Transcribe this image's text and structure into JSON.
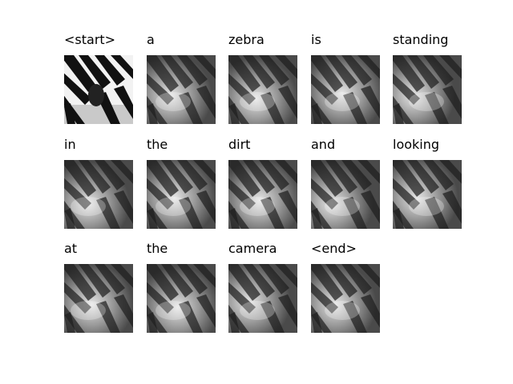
{
  "figure": {
    "frames": [
      {
        "word": "<start>",
        "variant": "original"
      },
      {
        "word": "a",
        "variant": "attention"
      },
      {
        "word": "zebra",
        "variant": "attention"
      },
      {
        "word": "is",
        "variant": "attention"
      },
      {
        "word": "standing",
        "variant": "attention"
      },
      {
        "word": "in",
        "variant": "attention"
      },
      {
        "word": "the",
        "variant": "attention"
      },
      {
        "word": "dirt",
        "variant": "attention"
      },
      {
        "word": "and",
        "variant": "attention"
      },
      {
        "word": "looking",
        "variant": "attention"
      },
      {
        "word": "at",
        "variant": "attention"
      },
      {
        "word": "the",
        "variant": "attention"
      },
      {
        "word": "camera",
        "variant": "attention"
      },
      {
        "word": "<end>",
        "variant": "attention"
      }
    ]
  }
}
